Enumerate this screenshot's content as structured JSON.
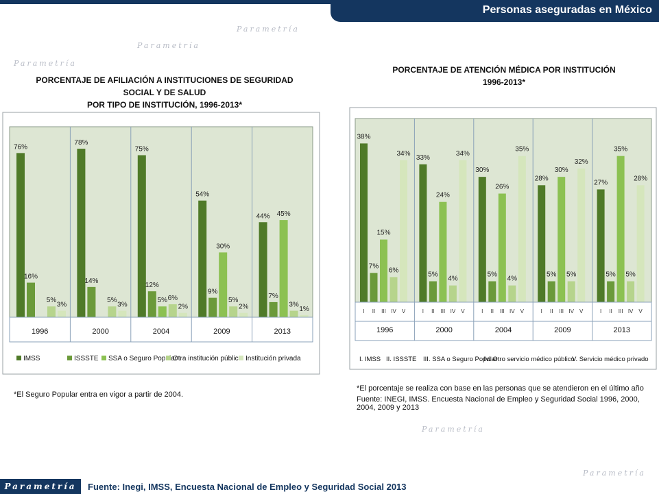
{
  "header": {
    "title": "Personas aseguradas en México"
  },
  "watermark": "Parametría",
  "footer": {
    "logo": "Parametría",
    "source": "Fuente: Inegi, IMSS, Encuesta Nacional de Empleo y Seguridad Social 2013"
  },
  "colors": {
    "header_bg": "#14365f",
    "plot_bg": "#dde6d3",
    "series": [
      "#4f7a28",
      "#6b9a3a",
      "#8cc152",
      "#b6d48c",
      "#d5e6bc"
    ]
  },
  "chart_data": [
    {
      "type": "bar",
      "title_line1": "PORCENTAJE DE AFILIACIÓN A INSTITUCIONES DE SEGURIDAD SOCIAL Y  DE SALUD",
      "title_line2": "POR TIPO DE INSTITUCIÓN, 1996-2013*",
      "categories": [
        "1996",
        "2000",
        "2004",
        "2009",
        "2013"
      ],
      "series": [
        {
          "name": "IMSS",
          "values": [
            76,
            78,
            75,
            54,
            44
          ]
        },
        {
          "name": "ISSSTE",
          "values": [
            16,
            14,
            12,
            9,
            7
          ]
        },
        {
          "name": "SSA o Seguro Popular",
          "values": [
            null,
            null,
            5,
            30,
            45
          ]
        },
        {
          "name": "Otra institución pública",
          "values": [
            5,
            5,
            6,
            5,
            3
          ]
        },
        {
          "name": "Institución privada",
          "values": [
            3,
            3,
            2,
            2,
            1
          ]
        }
      ],
      "ylim": [
        0,
        85
      ],
      "grid": false,
      "legend_position": "bottom",
      "note": "*El Seguro Popular entra en vigor a partir de 2004."
    },
    {
      "type": "bar",
      "title": "PORCENTAJE DE ATENCIÓN MÉDICA POR INSTITUCIÓN 1996-2013*",
      "categories": [
        "1996",
        "2000",
        "2004",
        "2009",
        "2013"
      ],
      "subcategories": [
        "I",
        "II",
        "III",
        "IV",
        "V"
      ],
      "series": [
        {
          "name": "I. IMSS",
          "values": [
            38,
            33,
            30,
            28,
            27
          ]
        },
        {
          "name": "II. ISSSTE",
          "values": [
            7,
            5,
            5,
            5,
            5
          ]
        },
        {
          "name": "III. SSA o Seguro Popular",
          "values": [
            15,
            24,
            26,
            30,
            35
          ]
        },
        {
          "name": "IV. Otro servicio médico público",
          "values": [
            6,
            4,
            4,
            5,
            5
          ]
        },
        {
          "name": "V. Servicio médico privado",
          "values": [
            34,
            34,
            35,
            32,
            28
          ]
        }
      ],
      "ylim": [
        0,
        42
      ],
      "grid": false,
      "legend_position": "bottom",
      "notes": [
        "*El porcentaje se realiza con base en las personas que se atendieron en el último año",
        "Fuente: INEGI, IMSS. Encuesta Nacional de Empleo y Seguridad Social 1996, 2000, 2004, 2009 y 2013"
      ]
    }
  ]
}
